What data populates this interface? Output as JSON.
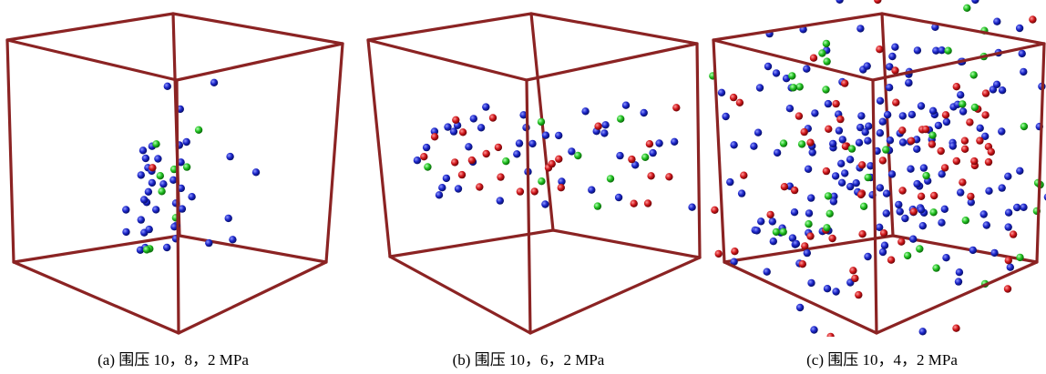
{
  "figure": {
    "colors": {
      "frame": "#8b2323",
      "blue": "#1a24c8",
      "red": "#d0161a",
      "green": "#20c020"
    },
    "panels": [
      {
        "caption": "(a)  围压 10，8，2 MPa",
        "blue_count": 40,
        "red_count": 1,
        "green_count": 9
      },
      {
        "caption": "(b)  围压 10，6，2 MPa",
        "blue_count": 40,
        "red_count": 26,
        "green_count": 9
      },
      {
        "caption": "(c)  围压 10，4，2 MPa",
        "blue_count": 190,
        "red_count": 75,
        "green_count": 40
      }
    ]
  }
}
